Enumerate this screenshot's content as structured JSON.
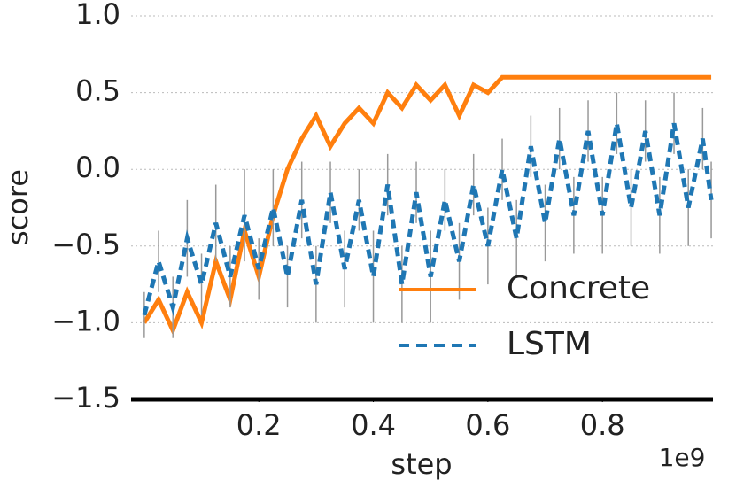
{
  "chart_data": {
    "type": "line",
    "x_label": "step",
    "y_label": "score",
    "x_offset_label": "1e9",
    "xlim": [
      -0.023,
      0.993
    ],
    "ylim": [
      -1.5,
      1.0
    ],
    "xticks": [
      0.2,
      0.4,
      0.6,
      0.8
    ],
    "yticks": [
      {
        "value": -1.5,
        "label": "−1.5"
      },
      {
        "value": -1.0,
        "label": "−1.0"
      },
      {
        "value": -0.5,
        "label": "−0.5"
      },
      {
        "value": 0.0,
        "label": "0.0"
      },
      0.5,
      {
        "value": 1.0,
        "label": "1.0"
      }
    ],
    "grid": true,
    "legend": "lower right",
    "series": [
      {
        "name": "Concrete",
        "color": "#ff7f0e",
        "dash": false,
        "x": [
          0,
          0.025,
          0.05,
          0.075,
          0.1,
          0.125,
          0.15,
          0.175,
          0.2,
          0.225,
          0.25,
          0.275,
          0.3,
          0.325,
          0.35,
          0.375,
          0.4,
          0.425,
          0.45,
          0.475,
          0.5,
          0.525,
          0.55,
          0.575,
          0.6,
          0.625,
          0.65,
          0.99
        ],
        "values": [
          -1.0,
          -0.85,
          -1.05,
          -0.8,
          -1.0,
          -0.6,
          -0.85,
          -0.4,
          -0.7,
          -0.3,
          0.0,
          0.2,
          0.35,
          0.15,
          0.3,
          0.4,
          0.3,
          0.5,
          0.4,
          0.55,
          0.45,
          0.55,
          0.35,
          0.55,
          0.5,
          0.6,
          0.6,
          0.6
        ]
      },
      {
        "name": "LSTM",
        "color": "#1f77b4",
        "dash": true,
        "x": [
          0,
          0.025,
          0.05,
          0.075,
          0.1,
          0.125,
          0.15,
          0.175,
          0.2,
          0.225,
          0.25,
          0.275,
          0.3,
          0.325,
          0.35,
          0.375,
          0.4,
          0.425,
          0.45,
          0.475,
          0.5,
          0.525,
          0.55,
          0.575,
          0.6,
          0.625,
          0.65,
          0.675,
          0.7,
          0.725,
          0.75,
          0.775,
          0.8,
          0.825,
          0.85,
          0.875,
          0.9,
          0.925,
          0.95,
          0.975,
          0.99
        ],
        "values": [
          -0.95,
          -0.6,
          -0.9,
          -0.45,
          -0.75,
          -0.35,
          -0.7,
          -0.3,
          -0.65,
          -0.25,
          -0.7,
          -0.2,
          -0.75,
          -0.15,
          -0.65,
          -0.2,
          -0.7,
          -0.1,
          -0.75,
          -0.15,
          -0.7,
          -0.2,
          -0.6,
          -0.1,
          -0.5,
          0.0,
          -0.45,
          0.15,
          -0.35,
          0.2,
          -0.3,
          0.25,
          -0.3,
          0.3,
          -0.25,
          0.25,
          -0.3,
          0.3,
          -0.25,
          0.2,
          -0.2
        ],
        "errors": [
          0.15,
          0.2,
          0.2,
          0.25,
          0.2,
          0.25,
          0.2,
          0.3,
          0.2,
          0.25,
          0.2,
          0.25,
          0.25,
          0.2,
          0.25,
          0.2,
          0.3,
          0.2,
          0.25,
          0.2,
          0.3,
          0.2,
          0.25,
          0.2,
          0.25,
          0.2,
          0.25,
          0.2,
          0.25,
          0.2,
          0.25,
          0.2,
          0.25,
          0.2,
          0.25,
          0.2,
          0.25,
          0.2,
          0.25,
          0.2,
          0.25
        ]
      }
    ]
  }
}
